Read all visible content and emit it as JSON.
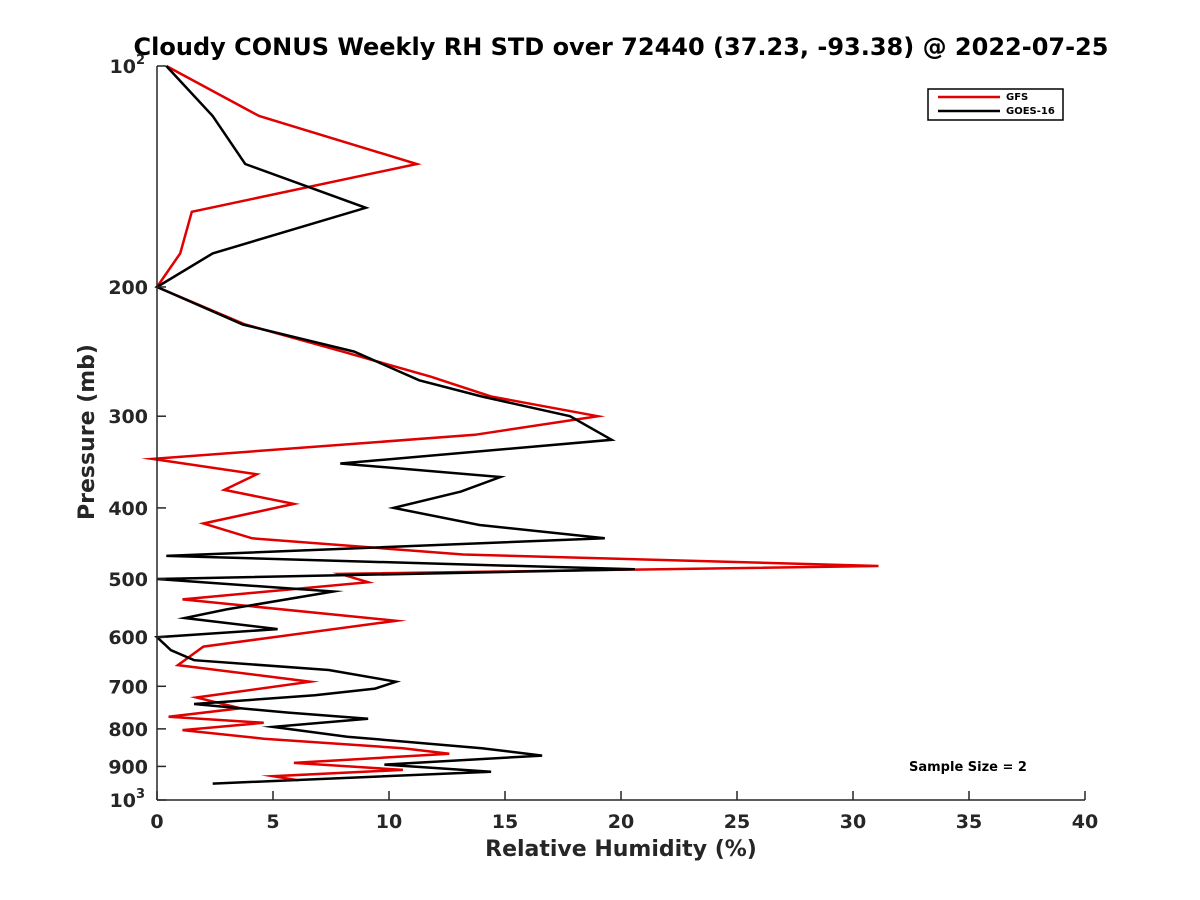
{
  "chart_data": {
    "type": "line",
    "title": "Cloudy CONUS Weekly RH STD over 72440 (37.23, -93.38) @ 2022-07-25",
    "xlabel": "Relative Humidity (%)",
    "ylabel": "Pressure (mb)",
    "xlim": [
      0,
      40
    ],
    "ylim": [
      100,
      1000
    ],
    "y_scale": "log",
    "y_reversed": true,
    "x_ticks": [
      "0",
      "5",
      "10",
      "15",
      "20",
      "25",
      "30",
      "35",
      "40"
    ],
    "y_ticks": [
      {
        "value": 100,
        "base": "10",
        "exp": "2"
      },
      {
        "value": 200,
        "label": "200"
      },
      {
        "value": 300,
        "label": "300"
      },
      {
        "value": 400,
        "label": "400"
      },
      {
        "value": 500,
        "label": "500"
      },
      {
        "value": 600,
        "label": "600"
      },
      {
        "value": 700,
        "label": "700"
      },
      {
        "value": 800,
        "label": "800"
      },
      {
        "value": 900,
        "label": "900"
      },
      {
        "value": 1000,
        "base": "10",
        "exp": "3"
      }
    ],
    "legend_position": "top-right",
    "annotation": "Sample Size = 2",
    "series": [
      {
        "name": "GFS",
        "color": "#e00000",
        "points": [
          [
            0.4,
            100
          ],
          [
            4.4,
            117
          ],
          [
            11.2,
            136
          ],
          [
            1.5,
            158
          ],
          [
            1.0,
            180
          ],
          [
            0.0,
            200
          ],
          [
            3.8,
            225
          ],
          [
            8.0,
            245
          ],
          [
            11.8,
            265
          ],
          [
            14.4,
            282
          ],
          [
            19.0,
            300
          ],
          [
            13.7,
            318
          ],
          [
            -0.2,
            343
          ],
          [
            4.3,
            360
          ],
          [
            2.9,
            378
          ],
          [
            5.9,
            395
          ],
          [
            2.0,
            420
          ],
          [
            4.1,
            440
          ],
          [
            13.2,
            463
          ],
          [
            31.1,
            480
          ],
          [
            7.9,
            492
          ],
          [
            9.1,
            505
          ],
          [
            1.1,
            533
          ],
          [
            10.3,
            570
          ],
          [
            2.0,
            618
          ],
          [
            0.9,
            655
          ],
          [
            6.6,
            690
          ],
          [
            1.7,
            725
          ],
          [
            3.6,
            750
          ],
          [
            0.5,
            770
          ],
          [
            4.6,
            785
          ],
          [
            1.1,
            803
          ],
          [
            4.6,
            825
          ],
          [
            10.6,
            850
          ],
          [
            12.6,
            865
          ],
          [
            5.9,
            890
          ],
          [
            10.6,
            910
          ],
          [
            5.0,
            928
          ],
          [
            6.1,
            940
          ]
        ]
      },
      {
        "name": "GOES-16",
        "color": "#000000",
        "points": [
          [
            0.4,
            100
          ],
          [
            2.4,
            117
          ],
          [
            3.8,
            136
          ],
          [
            9.0,
            156
          ],
          [
            2.4,
            180
          ],
          [
            0.0,
            200
          ],
          [
            3.7,
            225
          ],
          [
            8.5,
            245
          ],
          [
            11.3,
            268
          ],
          [
            14.0,
            282
          ],
          [
            17.8,
            300
          ],
          [
            19.6,
            323
          ],
          [
            7.9,
            348
          ],
          [
            14.8,
            363
          ],
          [
            13.1,
            380
          ],
          [
            10.2,
            400
          ],
          [
            13.9,
            422
          ],
          [
            19.3,
            440
          ],
          [
            0.4,
            465
          ],
          [
            20.6,
            485
          ],
          [
            0.0,
            500
          ],
          [
            7.6,
            520
          ],
          [
            3.0,
            550
          ],
          [
            1.2,
            565
          ],
          [
            5.2,
            585
          ],
          [
            0.0,
            600
          ],
          [
            0.6,
            625
          ],
          [
            1.6,
            645
          ],
          [
            7.4,
            665
          ],
          [
            10.3,
            690
          ],
          [
            9.4,
            705
          ],
          [
            6.8,
            720
          ],
          [
            1.6,
            740
          ],
          [
            5.6,
            760
          ],
          [
            9.1,
            775
          ],
          [
            5.0,
            795
          ],
          [
            8.2,
            820
          ],
          [
            14.0,
            850
          ],
          [
            16.6,
            870
          ],
          [
            9.8,
            895
          ],
          [
            14.4,
            915
          ],
          [
            2.4,
            950
          ]
        ]
      }
    ]
  }
}
